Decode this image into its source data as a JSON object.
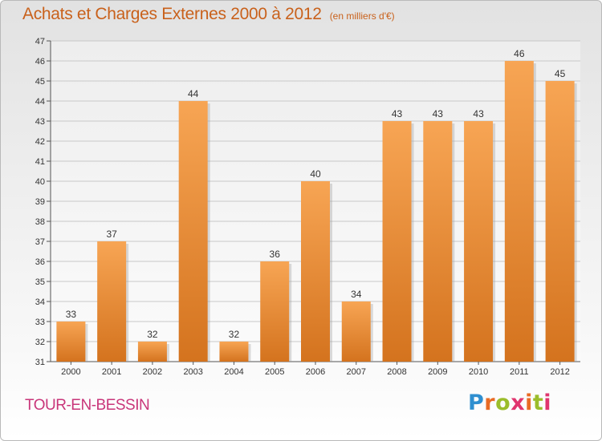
{
  "header": {
    "title": "Achats et Charges Externes 2000 à 2012",
    "subtitle": "(en milliers d'€)"
  },
  "footer": {
    "commune": "TOUR-EN-BESSIN",
    "logo_text": "Proxiti"
  },
  "colors": {
    "bar_light": "#f7a554",
    "bar_dark": "#d4731e",
    "title": "#c9611b",
    "commune": "#c9367a"
  },
  "chart_data": {
    "type": "bar",
    "title": "Achats et Charges Externes 2000 à 2012",
    "subtitle": "(en milliers d'€)",
    "categories": [
      "2000",
      "2001",
      "2002",
      "2003",
      "2004",
      "2005",
      "2006",
      "2007",
      "2008",
      "2009",
      "2010",
      "2011",
      "2012"
    ],
    "values": [
      33,
      37,
      32,
      44,
      32,
      36,
      40,
      34,
      43,
      43,
      43,
      46,
      45
    ],
    "data_labels": [
      "33",
      "37",
      "32",
      "44",
      "32",
      "36",
      "40",
      "34",
      "43",
      "43",
      "43",
      "46",
      "45"
    ],
    "ylim": [
      31,
      47
    ],
    "yticks": [
      "31",
      "32",
      "33",
      "34",
      "35",
      "36",
      "37",
      "38",
      "39",
      "40",
      "41",
      "42",
      "43",
      "44",
      "45",
      "46",
      "47"
    ],
    "xlabel": "",
    "ylabel": "",
    "grid": true,
    "legend": "none"
  }
}
